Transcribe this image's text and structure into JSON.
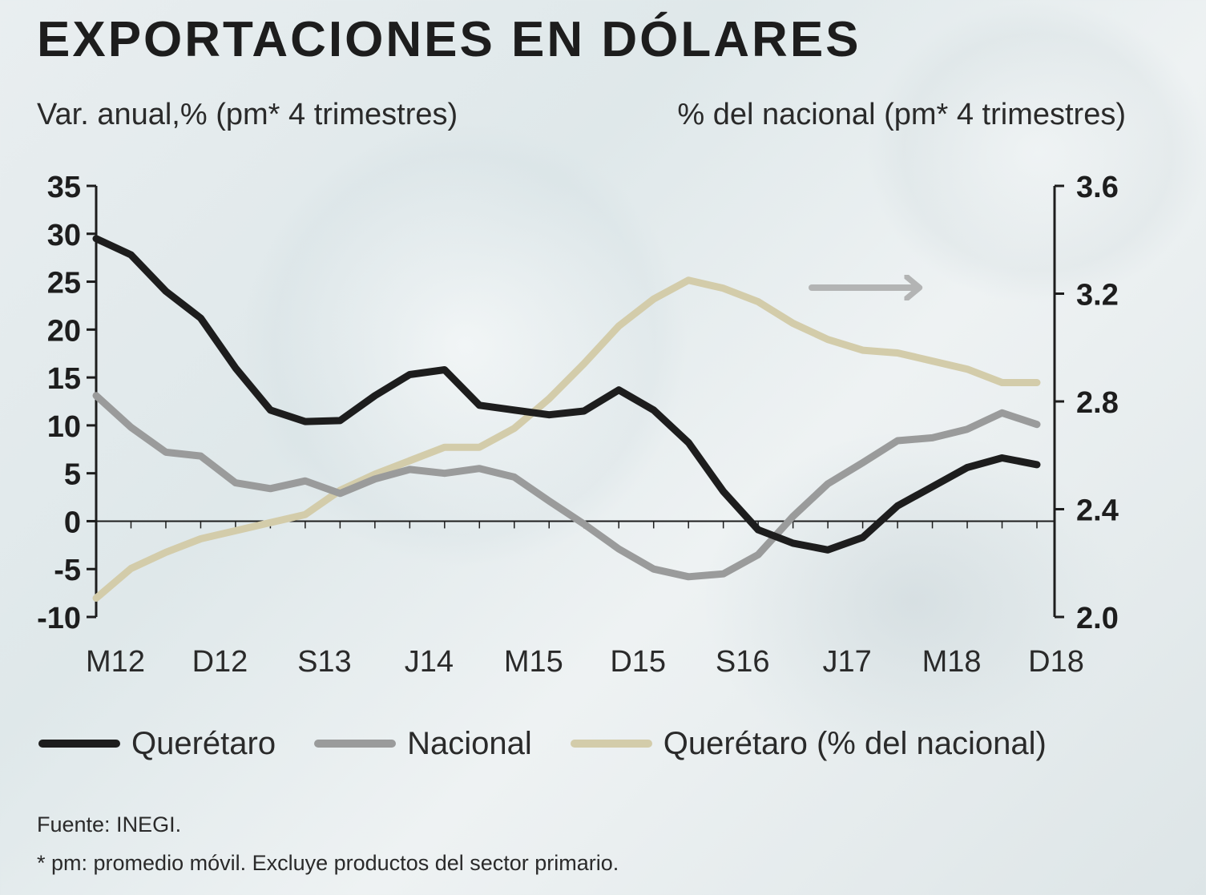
{
  "header": {
    "title": "EXPORTACIONES EN DÓLARES",
    "subtitle_left": "Var. anual,% (pm* 4 trimestres)",
    "subtitle_right": "% del nacional (pm* 4 trimestres)"
  },
  "legend": [
    {
      "label": "Querétaro",
      "color": "#1d1d1d"
    },
    {
      "label": "Nacional",
      "color": "#9a9b9b"
    },
    {
      "label": "Querétaro (% del nacional)",
      "color": "#d3ccaa"
    }
  ],
  "footer": {
    "source": "Fuente: INEGI.",
    "note": "* pm: promedio móvil. Excluye productos del sector primario."
  },
  "colors": {
    "queretaro": "#1d1d1d",
    "nacional": "#9a9b9b",
    "share": "#d3ccaa",
    "arrow": "#b3b4b4",
    "axis": "#1d1d1d"
  },
  "chart_data": {
    "type": "line",
    "x": [
      "M12",
      "J12",
      "S12",
      "D12",
      "M13",
      "J13",
      "S13",
      "D13",
      "M14",
      "J14",
      "S14",
      "D14",
      "M15",
      "J15",
      "S15",
      "D15",
      "M16",
      "J16",
      "S16",
      "D16",
      "M17",
      "J17",
      "S17",
      "D17",
      "M18",
      "J18",
      "S18",
      "D18"
    ],
    "x_tick_labels": [
      "M12",
      "D12",
      "S13",
      "J14",
      "M15",
      "D15",
      "S16",
      "J17",
      "M18",
      "D18"
    ],
    "left_axis": {
      "ylim": [
        -10,
        35
      ],
      "ticks": [
        "35",
        "30",
        "25",
        "20",
        "15",
        "10",
        "5",
        "0",
        "-5",
        "-10"
      ]
    },
    "right_axis": {
      "ylim": [
        2.0,
        3.6
      ],
      "ticks": [
        "3.6",
        "3.2",
        "2.8",
        "2.4",
        "2.0"
      ]
    },
    "grid": false,
    "series": [
      {
        "name": "Querétaro",
        "axis": "left",
        "values": [
          29.5,
          27.8,
          24.0,
          21.2,
          16.0,
          11.6,
          10.4,
          10.5,
          13.1,
          15.3,
          15.8,
          12.1,
          11.6,
          11.1,
          11.5,
          13.7,
          11.6,
          8.2,
          3.1,
          -0.9,
          -2.3,
          -3.0,
          -1.7,
          1.6,
          3.6,
          5.6,
          6.6,
          5.9
        ]
      },
      {
        "name": "Nacional",
        "axis": "left",
        "values": [
          13.1,
          9.8,
          7.2,
          6.8,
          4.0,
          3.4,
          4.2,
          2.9,
          4.4,
          5.4,
          5.0,
          5.5,
          4.6,
          2.1,
          -0.3,
          -2.9,
          -5.0,
          -5.8,
          -5.5,
          -3.5,
          0.5,
          3.9,
          6.1,
          8.4,
          8.7,
          9.6,
          11.3,
          10.1
        ]
      },
      {
        "name": "Querétaro (% del nacional)",
        "axis": "right",
        "values": [
          2.07,
          2.18,
          2.24,
          2.29,
          2.32,
          2.35,
          2.38,
          2.47,
          2.53,
          2.58,
          2.63,
          2.63,
          2.7,
          2.81,
          2.94,
          3.08,
          3.18,
          3.25,
          3.22,
          3.17,
          3.09,
          3.03,
          2.99,
          2.98,
          2.95,
          2.92,
          2.87,
          2.87
        ]
      }
    ],
    "annotation": {
      "type": "arrow",
      "meaning": "points to right axis",
      "series": "Querétaro (% del nacional)"
    }
  }
}
